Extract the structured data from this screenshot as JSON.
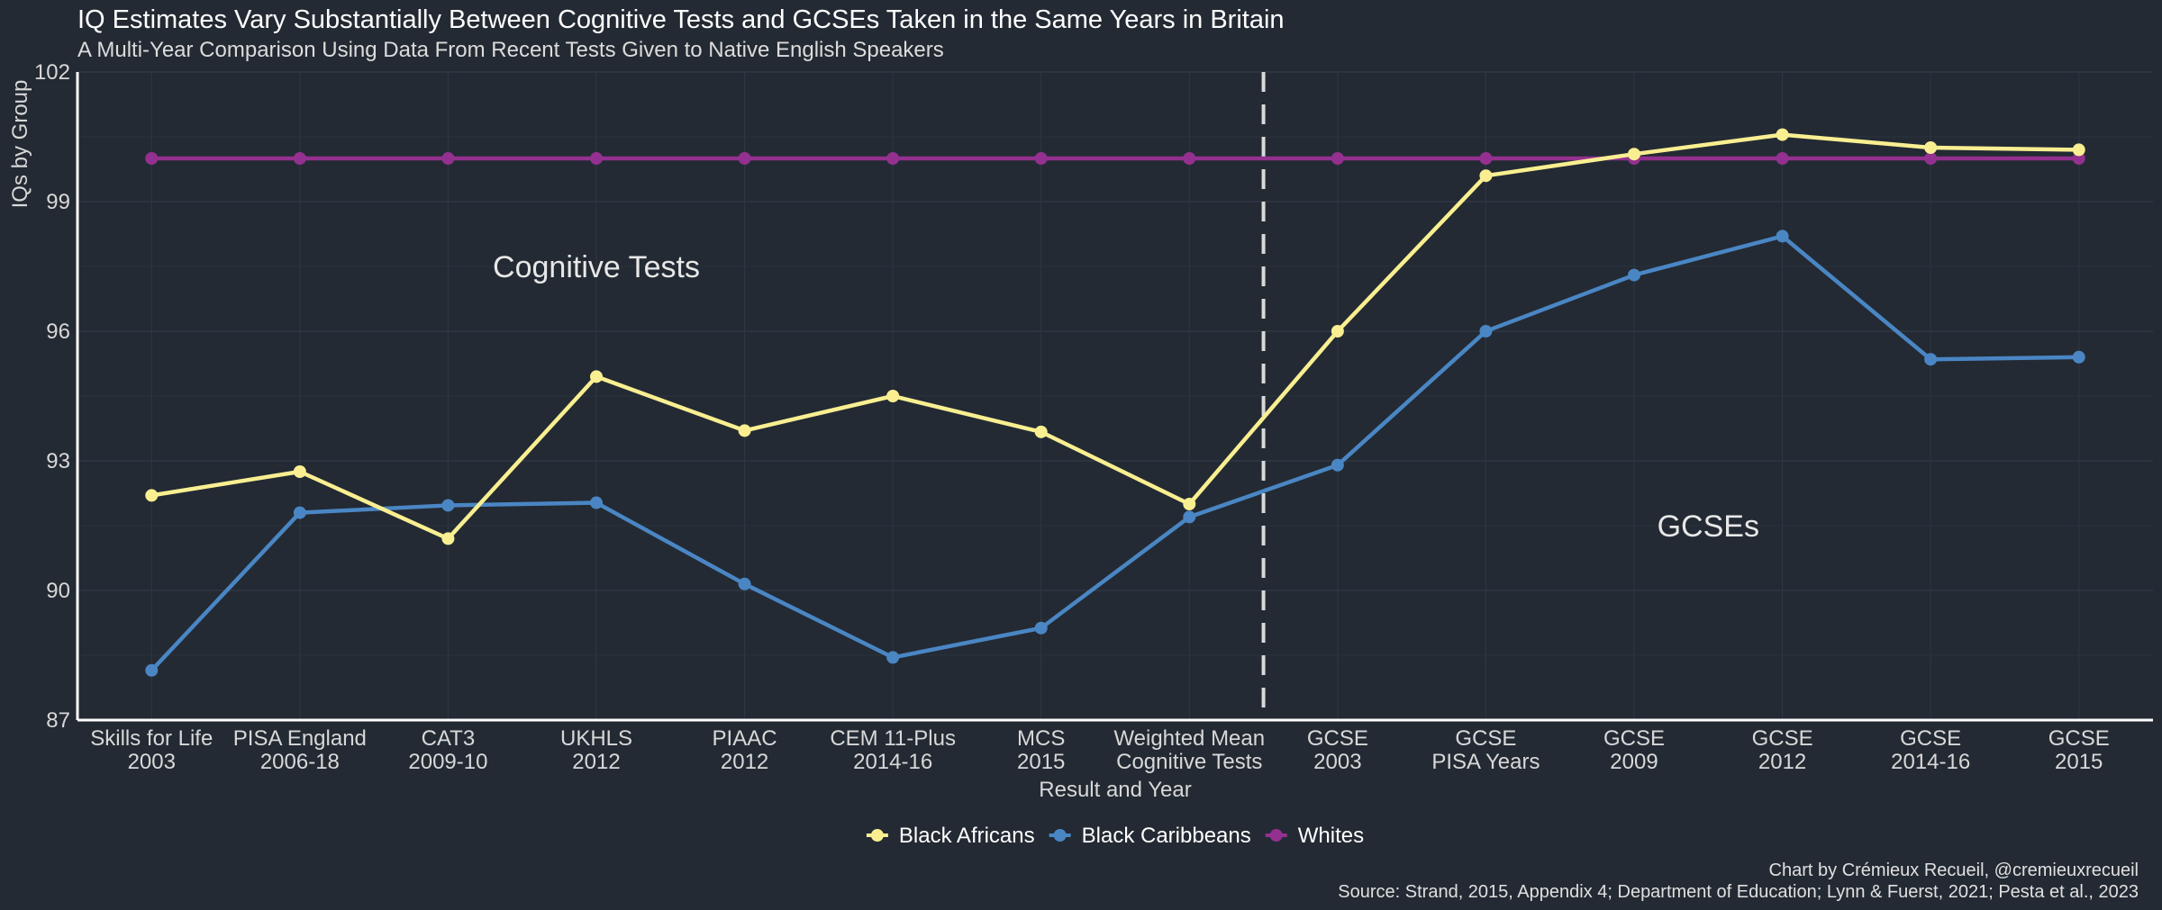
{
  "title": "IQ Estimates Vary Substantially Between Cognitive Tests and GCSEs Taken in the Same Years in Britain",
  "subtitle": "A Multi-Year Comparison Using Data From Recent Tests Given to Native English Speakers",
  "credit": {
    "line1": "Chart by Crémieux Recueil, @cremieuxrecueil",
    "line2": "Source: Strand, 2015, Appendix 4; Department of Education; Lynn & Fuerst, 2021; Pesta et al., 2023"
  },
  "chart_data": {
    "type": "line",
    "xlabel": "Result and Year",
    "ylabel": "IQs by Group",
    "ylim": [
      87,
      102
    ],
    "yticks": [
      87,
      90,
      93,
      96,
      99,
      102
    ],
    "categories": [
      [
        "Skills for Life",
        "2003"
      ],
      [
        "PISA England",
        "2006-18"
      ],
      [
        "CAT3",
        "2009-10"
      ],
      [
        "UKHLS",
        "2012"
      ],
      [
        "PIAAC",
        "2012"
      ],
      [
        "CEM 11-Plus",
        "2014-16"
      ],
      [
        "MCS",
        "2015"
      ],
      [
        "Weighted Mean",
        "Cognitive Tests"
      ],
      [
        "GCSE",
        "2003"
      ],
      [
        "GCSE",
        "PISA Years"
      ],
      [
        "GCSE",
        "2009"
      ],
      [
        "GCSE",
        "2012"
      ],
      [
        "GCSE",
        "2014-16"
      ],
      [
        "GCSE",
        "2015"
      ]
    ],
    "series": [
      {
        "name": "Black Africans",
        "color": "#f9ef91",
        "values": [
          92.2,
          92.75,
          91.2,
          94.95,
          93.7,
          94.5,
          93.67,
          92.0,
          96.0,
          99.6,
          100.1,
          100.55,
          100.25,
          100.2
        ]
      },
      {
        "name": "Black Caribbeans",
        "color": "#4a86c4",
        "values": [
          88.15,
          91.8,
          91.97,
          92.03,
          90.15,
          88.45,
          89.13,
          91.7,
          92.9,
          96.0,
          97.3,
          98.2,
          95.35,
          95.4
        ]
      },
      {
        "name": "Whites",
        "color": "#94308f",
        "values": [
          100,
          100,
          100,
          100,
          100,
          100,
          100,
          100,
          100,
          100,
          100,
          100,
          100,
          100
        ]
      }
    ],
    "divider_after_index": 7,
    "annotations": [
      {
        "text": "Cognitive Tests",
        "x_index": 3,
        "y": 97.5
      },
      {
        "text": "GCSEs",
        "x_index": 10.5,
        "y": 91.5
      }
    ],
    "legend": "bottom",
    "grid": true
  }
}
